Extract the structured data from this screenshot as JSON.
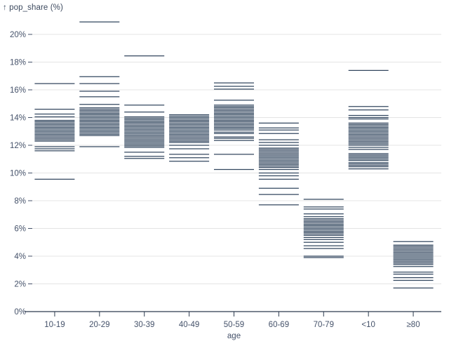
{
  "chart_data": {
    "type": "tick",
    "title": "↑ pop_share (%)",
    "xlabel": "age",
    "ylabel": "pop_share (%)",
    "ylim": [
      0,
      21.5
    ],
    "grid": true,
    "colors": {
      "tick": "#33475f",
      "grid": "#e4e4e4",
      "axis": "#2c3a4e",
      "text": "#45526a",
      "background": "#ffffff"
    },
    "y_ticks": [
      {
        "value": 0,
        "label": "0%"
      },
      {
        "value": 2,
        "label": "2%"
      },
      {
        "value": 4,
        "label": "4%"
      },
      {
        "value": 6,
        "label": "6%"
      },
      {
        "value": 8,
        "label": "8%"
      },
      {
        "value": 10,
        "label": "10%"
      },
      {
        "value": 12,
        "label": "12%"
      },
      {
        "value": 14,
        "label": "14%"
      },
      {
        "value": 16,
        "label": "16%"
      },
      {
        "value": 18,
        "label": "18%"
      },
      {
        "value": 20,
        "label": "20%"
      }
    ],
    "categories": [
      "10-19",
      "20-29",
      "30-39",
      "40-49",
      "50-59",
      "60-69",
      "70-79",
      "<10",
      "≥80"
    ],
    "series": [
      {
        "category": "10-19",
        "values": [
          16.45,
          14.6,
          14.25,
          14.05,
          13.8,
          13.7,
          13.6,
          13.5,
          13.4,
          13.3,
          13.2,
          13.1,
          13.0,
          12.9,
          12.8,
          12.7,
          12.6,
          12.5,
          12.4,
          12.3,
          11.9,
          11.75,
          11.6,
          9.55
        ]
      },
      {
        "category": "20-29",
        "values": [
          20.9,
          16.95,
          16.45,
          15.9,
          15.5,
          14.95,
          14.7,
          14.6,
          14.5,
          14.4,
          14.3,
          14.2,
          14.1,
          14.0,
          13.9,
          13.8,
          13.7,
          13.6,
          13.5,
          13.4,
          13.3,
          13.2,
          13.1,
          13.0,
          12.9,
          12.8,
          12.7,
          11.9
        ]
      },
      {
        "category": "30-39",
        "values": [
          18.45,
          14.9,
          14.4,
          14.05,
          13.95,
          13.85,
          13.75,
          13.65,
          13.55,
          13.45,
          13.35,
          13.25,
          13.15,
          13.05,
          12.95,
          12.85,
          12.75,
          12.65,
          12.55,
          12.45,
          12.35,
          12.25,
          12.15,
          12.05,
          11.95,
          11.85,
          11.5,
          11.2,
          11.05
        ]
      },
      {
        "category": "40-49",
        "values": [
          14.2,
          14.1,
          14.0,
          13.9,
          13.8,
          13.7,
          13.6,
          13.5,
          13.4,
          13.3,
          13.2,
          13.1,
          13.0,
          12.9,
          12.8,
          12.7,
          12.6,
          12.5,
          12.4,
          12.3,
          12.2,
          12.0,
          11.75,
          11.35,
          11.1,
          10.85
        ]
      },
      {
        "category": "50-59",
        "values": [
          16.5,
          16.25,
          16.05,
          15.25,
          14.9,
          14.8,
          14.7,
          14.6,
          14.5,
          14.4,
          14.3,
          14.2,
          14.1,
          14.0,
          13.9,
          13.8,
          13.7,
          13.6,
          13.5,
          13.4,
          13.3,
          13.2,
          13.1,
          12.95,
          12.85,
          12.6,
          12.5,
          12.35,
          11.35,
          10.25
        ]
      },
      {
        "category": "60-69",
        "values": [
          13.6,
          13.25,
          13.1,
          12.85,
          12.4,
          12.2,
          12.0,
          11.8,
          11.7,
          11.6,
          11.5,
          11.4,
          11.3,
          11.2,
          11.1,
          11.0,
          10.9,
          10.8,
          10.7,
          10.6,
          10.5,
          10.4,
          10.25,
          10.0,
          9.8,
          9.55,
          8.9,
          8.45,
          7.7
        ]
      },
      {
        "category": "70-79",
        "values": [
          8.1,
          7.55,
          7.4,
          7.05,
          6.85,
          6.7,
          6.6,
          6.5,
          6.4,
          6.3,
          6.2,
          6.1,
          6.0,
          5.9,
          5.8,
          5.7,
          5.6,
          5.5,
          5.35,
          5.2,
          5.0,
          4.75,
          4.55,
          4.0,
          3.9
        ]
      },
      {
        "category": "<10",
        "values": [
          17.4,
          14.8,
          14.55,
          14.15,
          14.0,
          13.9,
          13.6,
          13.5,
          13.4,
          13.3,
          13.2,
          13.1,
          13.0,
          12.9,
          12.8,
          12.7,
          12.6,
          12.5,
          12.4,
          12.3,
          12.2,
          12.1,
          12.0,
          11.85,
          11.7,
          11.4,
          11.3,
          11.2,
          11.1,
          11.0,
          10.9,
          10.75,
          10.65,
          10.55,
          10.45,
          10.3
        ]
      },
      {
        "category": "≥80",
        "values": [
          5.05,
          4.8,
          4.7,
          4.6,
          4.5,
          4.4,
          4.3,
          4.2,
          4.1,
          4.0,
          3.9,
          3.8,
          3.7,
          3.6,
          3.5,
          3.4,
          3.25,
          2.85,
          2.7,
          2.45,
          2.25,
          1.7
        ]
      }
    ]
  }
}
